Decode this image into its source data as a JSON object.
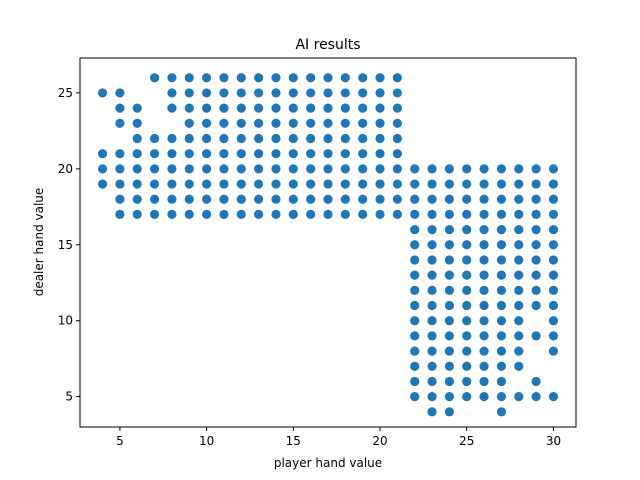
{
  "chart_data": {
    "type": "scatter",
    "title": "AI results",
    "xlabel": "player hand value",
    "ylabel": "dealer hand value",
    "xlim": [
      2.7,
      31.3
    ],
    "ylim": [
      3,
      27.3
    ],
    "xticks": [
      5,
      10,
      15,
      20,
      25,
      30
    ],
    "yticks": [
      5,
      10,
      15,
      20,
      25
    ],
    "grid": false,
    "marker_color": "#1f77b4",
    "series": [
      {
        "points": [
          [
            4,
            25
          ],
          [
            4,
            21
          ],
          [
            4,
            20
          ],
          [
            4,
            19
          ],
          [
            5,
            25
          ],
          [
            5,
            24
          ],
          [
            5,
            23
          ],
          [
            5,
            21
          ],
          [
            5,
            20
          ],
          [
            5,
            19
          ],
          [
            5,
            18
          ],
          [
            5,
            17
          ],
          [
            6,
            24
          ],
          [
            6,
            23
          ],
          [
            6,
            22
          ],
          [
            6,
            21
          ],
          [
            6,
            20
          ],
          [
            6,
            19
          ],
          [
            6,
            18
          ],
          [
            6,
            17
          ],
          [
            7,
            26
          ],
          [
            7,
            22
          ],
          [
            7,
            21
          ],
          [
            7,
            20
          ],
          [
            7,
            19
          ],
          [
            7,
            18
          ],
          [
            7,
            17
          ],
          [
            8,
            26
          ],
          [
            8,
            25
          ],
          [
            8,
            24
          ],
          [
            8,
            22
          ],
          [
            8,
            21
          ],
          [
            8,
            20
          ],
          [
            8,
            19
          ],
          [
            8,
            18
          ],
          [
            8,
            17
          ],
          [
            9,
            26
          ],
          [
            9,
            25
          ],
          [
            9,
            24
          ],
          [
            9,
            23
          ],
          [
            9,
            22
          ],
          [
            9,
            21
          ],
          [
            9,
            20
          ],
          [
            9,
            19
          ],
          [
            9,
            18
          ],
          [
            9,
            17
          ],
          [
            10,
            26
          ],
          [
            10,
            25
          ],
          [
            10,
            24
          ],
          [
            10,
            23
          ],
          [
            10,
            22
          ],
          [
            10,
            21
          ],
          [
            10,
            20
          ],
          [
            10,
            19
          ],
          [
            10,
            18
          ],
          [
            10,
            17
          ],
          [
            11,
            26
          ],
          [
            11,
            25
          ],
          [
            11,
            24
          ],
          [
            11,
            23
          ],
          [
            11,
            22
          ],
          [
            11,
            21
          ],
          [
            11,
            20
          ],
          [
            11,
            19
          ],
          [
            11,
            18
          ],
          [
            11,
            17
          ],
          [
            12,
            26
          ],
          [
            12,
            25
          ],
          [
            12,
            24
          ],
          [
            12,
            23
          ],
          [
            12,
            22
          ],
          [
            12,
            21
          ],
          [
            12,
            20
          ],
          [
            12,
            19
          ],
          [
            12,
            18
          ],
          [
            12,
            17
          ],
          [
            13,
            26
          ],
          [
            13,
            25
          ],
          [
            13,
            24
          ],
          [
            13,
            23
          ],
          [
            13,
            22
          ],
          [
            13,
            21
          ],
          [
            13,
            20
          ],
          [
            13,
            19
          ],
          [
            13,
            18
          ],
          [
            13,
            17
          ],
          [
            14,
            26
          ],
          [
            14,
            25
          ],
          [
            14,
            24
          ],
          [
            14,
            23
          ],
          [
            14,
            22
          ],
          [
            14,
            21
          ],
          [
            14,
            20
          ],
          [
            14,
            19
          ],
          [
            14,
            18
          ],
          [
            14,
            17
          ],
          [
            15,
            26
          ],
          [
            15,
            25
          ],
          [
            15,
            24
          ],
          [
            15,
            23
          ],
          [
            15,
            22
          ],
          [
            15,
            21
          ],
          [
            15,
            20
          ],
          [
            15,
            19
          ],
          [
            15,
            18
          ],
          [
            15,
            17
          ],
          [
            16,
            26
          ],
          [
            16,
            25
          ],
          [
            16,
            24
          ],
          [
            16,
            23
          ],
          [
            16,
            22
          ],
          [
            16,
            21
          ],
          [
            16,
            20
          ],
          [
            16,
            19
          ],
          [
            16,
            18
          ],
          [
            16,
            17
          ],
          [
            17,
            26
          ],
          [
            17,
            25
          ],
          [
            17,
            24
          ],
          [
            17,
            23
          ],
          [
            17,
            22
          ],
          [
            17,
            21
          ],
          [
            17,
            20
          ],
          [
            17,
            19
          ],
          [
            17,
            18
          ],
          [
            17,
            17
          ],
          [
            18,
            26
          ],
          [
            18,
            25
          ],
          [
            18,
            24
          ],
          [
            18,
            23
          ],
          [
            18,
            22
          ],
          [
            18,
            21
          ],
          [
            18,
            20
          ],
          [
            18,
            19
          ],
          [
            18,
            18
          ],
          [
            18,
            17
          ],
          [
            19,
            26
          ],
          [
            19,
            25
          ],
          [
            19,
            24
          ],
          [
            19,
            23
          ],
          [
            19,
            22
          ],
          [
            19,
            21
          ],
          [
            19,
            20
          ],
          [
            19,
            19
          ],
          [
            19,
            18
          ],
          [
            19,
            17
          ],
          [
            20,
            26
          ],
          [
            20,
            25
          ],
          [
            20,
            24
          ],
          [
            20,
            23
          ],
          [
            20,
            22
          ],
          [
            20,
            21
          ],
          [
            20,
            20
          ],
          [
            20,
            19
          ],
          [
            20,
            18
          ],
          [
            20,
            17
          ],
          [
            21,
            26
          ],
          [
            21,
            25
          ],
          [
            21,
            24
          ],
          [
            21,
            23
          ],
          [
            21,
            22
          ],
          [
            21,
            21
          ],
          [
            21,
            20
          ],
          [
            21,
            19
          ],
          [
            21,
            18
          ],
          [
            21,
            17
          ],
          [
            22,
            20
          ],
          [
            22,
            19
          ],
          [
            22,
            18
          ],
          [
            22,
            17
          ],
          [
            22,
            16
          ],
          [
            22,
            15
          ],
          [
            22,
            14
          ],
          [
            22,
            13
          ],
          [
            22,
            12
          ],
          [
            22,
            11
          ],
          [
            22,
            10
          ],
          [
            22,
            9
          ],
          [
            22,
            8
          ],
          [
            22,
            7
          ],
          [
            22,
            6
          ],
          [
            22,
            5
          ],
          [
            23,
            20
          ],
          [
            23,
            19
          ],
          [
            23,
            18
          ],
          [
            23,
            17
          ],
          [
            23,
            16
          ],
          [
            23,
            15
          ],
          [
            23,
            14
          ],
          [
            23,
            13
          ],
          [
            23,
            12
          ],
          [
            23,
            11
          ],
          [
            23,
            10
          ],
          [
            23,
            9
          ],
          [
            23,
            8
          ],
          [
            23,
            7
          ],
          [
            23,
            6
          ],
          [
            23,
            5
          ],
          [
            23,
            4
          ],
          [
            24,
            20
          ],
          [
            24,
            19
          ],
          [
            24,
            18
          ],
          [
            24,
            17
          ],
          [
            24,
            16
          ],
          [
            24,
            15
          ],
          [
            24,
            14
          ],
          [
            24,
            13
          ],
          [
            24,
            12
          ],
          [
            24,
            11
          ],
          [
            24,
            10
          ],
          [
            24,
            9
          ],
          [
            24,
            8
          ],
          [
            24,
            7
          ],
          [
            24,
            6
          ],
          [
            24,
            5
          ],
          [
            24,
            4
          ],
          [
            25,
            20
          ],
          [
            25,
            19
          ],
          [
            25,
            18
          ],
          [
            25,
            17
          ],
          [
            25,
            16
          ],
          [
            25,
            15
          ],
          [
            25,
            14
          ],
          [
            25,
            13
          ],
          [
            25,
            12
          ],
          [
            25,
            11
          ],
          [
            25,
            10
          ],
          [
            25,
            9
          ],
          [
            25,
            8
          ],
          [
            25,
            7
          ],
          [
            25,
            6
          ],
          [
            25,
            5
          ],
          [
            26,
            20
          ],
          [
            26,
            19
          ],
          [
            26,
            18
          ],
          [
            26,
            17
          ],
          [
            26,
            16
          ],
          [
            26,
            15
          ],
          [
            26,
            14
          ],
          [
            26,
            13
          ],
          [
            26,
            12
          ],
          [
            26,
            11
          ],
          [
            26,
            10
          ],
          [
            26,
            9
          ],
          [
            26,
            8
          ],
          [
            26,
            7
          ],
          [
            26,
            6
          ],
          [
            26,
            5
          ],
          [
            27,
            20
          ],
          [
            27,
            19
          ],
          [
            27,
            18
          ],
          [
            27,
            17
          ],
          [
            27,
            16
          ],
          [
            27,
            15
          ],
          [
            27,
            14
          ],
          [
            27,
            13
          ],
          [
            27,
            12
          ],
          [
            27,
            11
          ],
          [
            27,
            10
          ],
          [
            27,
            9
          ],
          [
            27,
            8
          ],
          [
            27,
            7
          ],
          [
            27,
            6
          ],
          [
            27,
            5
          ],
          [
            27,
            4
          ],
          [
            28,
            20
          ],
          [
            28,
            19
          ],
          [
            28,
            18
          ],
          [
            28,
            17
          ],
          [
            28,
            16
          ],
          [
            28,
            15
          ],
          [
            28,
            14
          ],
          [
            28,
            13
          ],
          [
            28,
            12
          ],
          [
            28,
            11
          ],
          [
            28,
            10
          ],
          [
            28,
            9
          ],
          [
            28,
            8
          ],
          [
            28,
            7
          ],
          [
            28,
            5
          ],
          [
            29,
            20
          ],
          [
            29,
            19
          ],
          [
            29,
            18
          ],
          [
            29,
            17
          ],
          [
            29,
            16
          ],
          [
            29,
            15
          ],
          [
            29,
            14
          ],
          [
            29,
            13
          ],
          [
            29,
            12
          ],
          [
            29,
            11
          ],
          [
            29,
            9
          ],
          [
            29,
            6
          ],
          [
            29,
            5
          ],
          [
            30,
            20
          ],
          [
            30,
            19
          ],
          [
            30,
            18
          ],
          [
            30,
            17
          ],
          [
            30,
            16
          ],
          [
            30,
            15
          ],
          [
            30,
            14
          ],
          [
            30,
            13
          ],
          [
            30,
            12
          ],
          [
            30,
            11
          ],
          [
            30,
            10
          ],
          [
            30,
            9
          ],
          [
            30,
            8
          ],
          [
            30,
            5
          ]
        ]
      }
    ]
  }
}
